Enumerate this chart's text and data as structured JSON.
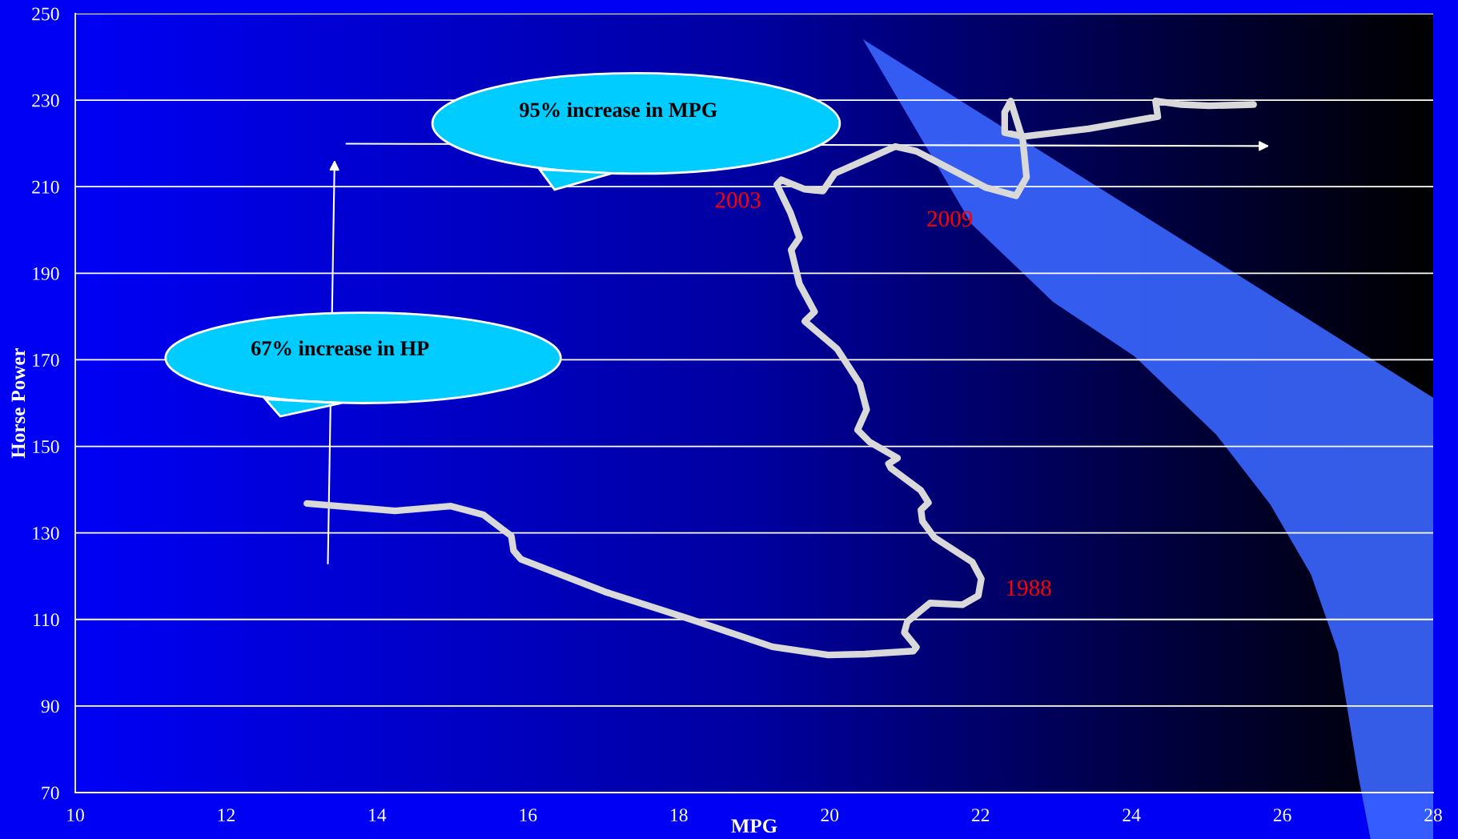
{
  "chart_data": {
    "type": "line",
    "xlabel": "MPG",
    "ylabel": "Horse Power",
    "xlim": [
      10,
      28
    ],
    "xticks": [
      10,
      12,
      14,
      16,
      18,
      20,
      22,
      24,
      26,
      28
    ],
    "ylim": [
      70,
      250
    ],
    "yticks": [
      70,
      90,
      110,
      130,
      150,
      170,
      190,
      210,
      230,
      250
    ],
    "grid": "y",
    "marker": "none",
    "line_style": "solid",
    "series": [
      {
        "color": "#d9d9d9",
        "x": [
          13.07,
          14.24,
          14.98,
          15.41,
          15.78,
          15.81,
          15.91,
          17.02,
          18.13,
          19.24,
          19.98,
          20.47,
          21.11,
          21.15,
          20.99,
          21.03,
          21.33,
          21.76,
          21.97,
          22.01,
          21.89,
          21.39,
          21.23,
          21.21,
          21.31,
          21.21,
          20.81,
          20.78,
          20.9,
          20.53,
          20.37,
          20.49,
          20.4,
          20.1,
          19.67,
          19.8,
          19.6,
          19.49,
          19.6,
          19.48,
          19.3,
          19.36,
          19.67,
          19.91,
          20.07,
          20.59,
          20.87,
          21.15,
          22.07,
          22.47,
          22.61,
          22.56,
          22.4,
          22.32,
          22.32,
          22.56,
          23.43,
          24.35,
          24.32,
          24.66,
          25.03,
          25.62
        ],
        "values": [
          136.8,
          135.1,
          136.2,
          134.2,
          129.3,
          125.9,
          123.9,
          116.4,
          110.2,
          103.7,
          101.8,
          102.0,
          102.7,
          103.6,
          107.0,
          109.5,
          113.8,
          113.4,
          115.5,
          119.4,
          123.3,
          128.9,
          132.7,
          135.3,
          137.0,
          139.8,
          145.0,
          146.0,
          147.3,
          151.0,
          153.8,
          158.5,
          164.5,
          172.5,
          178.9,
          181.1,
          187.5,
          195.4,
          198.2,
          204.0,
          210.5,
          211.6,
          209.4,
          209.0,
          213.1,
          217.1,
          219.3,
          218.2,
          209.8,
          207.9,
          212.2,
          220.8,
          229.8,
          227.2,
          222.5,
          221.6,
          223.4,
          226.2,
          229.8,
          229.0,
          228.7,
          229.0
        ]
      }
    ],
    "annotations": [
      "95% increase in MPG",
      "67% increase in HP",
      "2003",
      "2009",
      "1988"
    ]
  }
}
